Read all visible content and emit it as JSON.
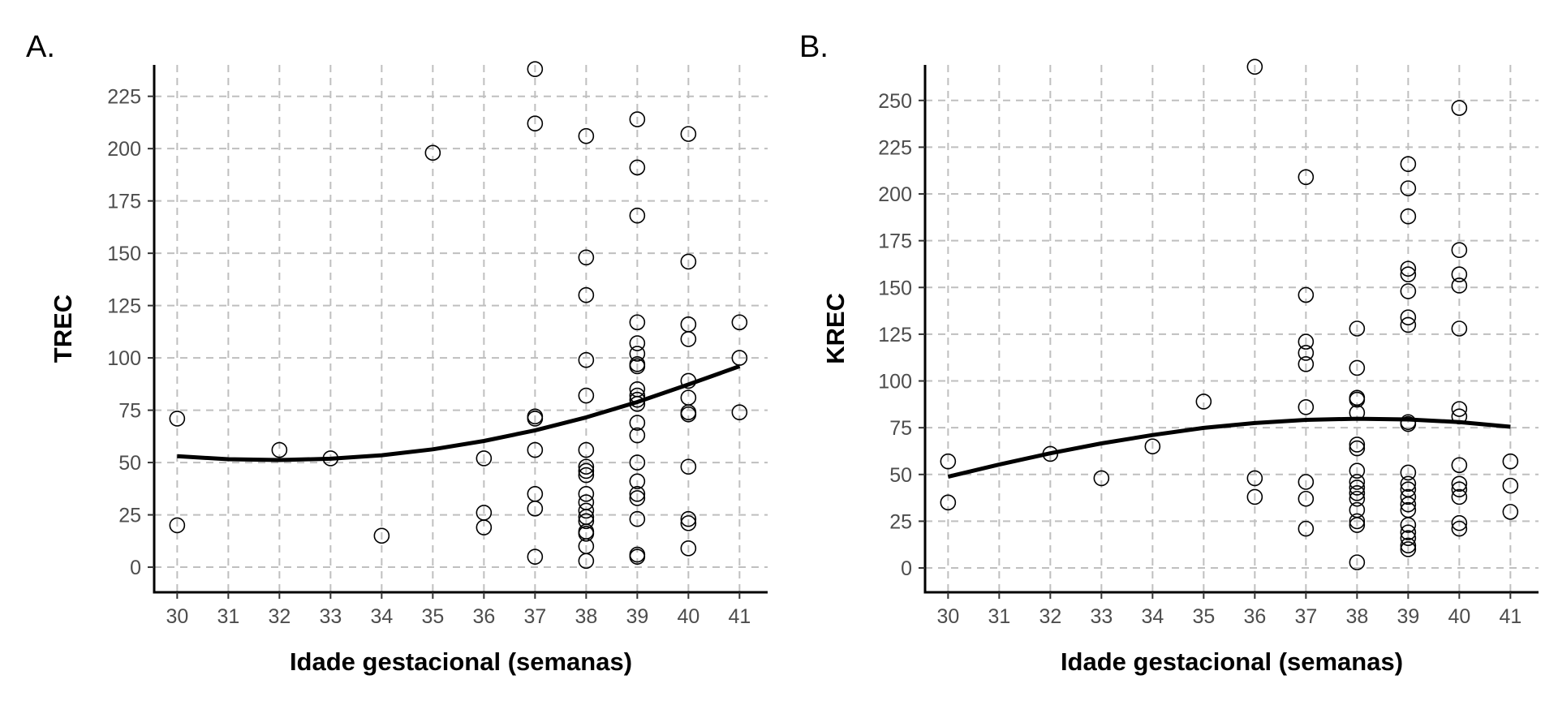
{
  "chart_data": [
    {
      "type": "scatter",
      "panel": "A.",
      "xlabel": "Idade gestacional (semanas)",
      "ylabel": "TREC",
      "xlim": [
        29.55,
        41.55
      ],
      "ylim": [
        -12,
        240
      ],
      "xticks": [
        30,
        31,
        32,
        33,
        34,
        35,
        36,
        37,
        38,
        39,
        40,
        41
      ],
      "yticks": [
        0,
        25,
        50,
        75,
        100,
        125,
        150,
        175,
        200,
        225
      ],
      "grid": true,
      "points": [
        [
          30,
          71
        ],
        [
          30,
          20
        ],
        [
          32,
          56
        ],
        [
          33,
          52
        ],
        [
          34,
          15
        ],
        [
          35,
          198
        ],
        [
          36,
          52
        ],
        [
          36,
          26
        ],
        [
          36,
          19
        ],
        [
          37,
          238
        ],
        [
          37,
          212
        ],
        [
          37,
          72
        ],
        [
          37,
          71
        ],
        [
          37,
          56
        ],
        [
          37,
          35
        ],
        [
          37,
          28
        ],
        [
          37,
          5
        ],
        [
          38,
          206
        ],
        [
          38,
          148
        ],
        [
          38,
          130
        ],
        [
          38,
          99
        ],
        [
          38,
          82
        ],
        [
          38,
          56
        ],
        [
          38,
          48
        ],
        [
          38,
          46
        ],
        [
          38,
          44
        ],
        [
          38,
          35
        ],
        [
          38,
          31
        ],
        [
          38,
          27
        ],
        [
          38,
          24
        ],
        [
          38,
          22
        ],
        [
          38,
          17
        ],
        [
          38,
          16
        ],
        [
          38,
          10
        ],
        [
          38,
          3
        ],
        [
          39,
          214
        ],
        [
          39,
          191
        ],
        [
          39,
          168
        ],
        [
          39,
          117
        ],
        [
          39,
          107
        ],
        [
          39,
          102
        ],
        [
          39,
          97
        ],
        [
          39,
          96
        ],
        [
          39,
          85
        ],
        [
          39,
          82
        ],
        [
          39,
          80
        ],
        [
          39,
          78
        ],
        [
          39,
          69
        ],
        [
          39,
          63
        ],
        [
          39,
          50
        ],
        [
          39,
          41
        ],
        [
          39,
          35
        ],
        [
          39,
          33
        ],
        [
          39,
          23
        ],
        [
          39,
          6
        ],
        [
          39,
          5
        ],
        [
          40,
          207
        ],
        [
          40,
          146
        ],
        [
          40,
          116
        ],
        [
          40,
          109
        ],
        [
          40,
          89
        ],
        [
          40,
          81
        ],
        [
          40,
          74
        ],
        [
          40,
          73
        ],
        [
          40,
          48
        ],
        [
          40,
          23
        ],
        [
          40,
          21
        ],
        [
          40,
          9
        ],
        [
          41,
          117
        ],
        [
          41,
          100
        ],
        [
          41,
          74
        ]
      ],
      "fit_curve": {
        "x": [
          30,
          31,
          32,
          33,
          34,
          35,
          36,
          37,
          38,
          39,
          40,
          41
        ],
        "y": [
          53.0,
          51.6,
          51.2,
          51.8,
          53.5,
          56.3,
          60.3,
          65.4,
          71.6,
          78.9,
          87.3,
          96.0
        ]
      }
    },
    {
      "type": "scatter",
      "panel": "B.",
      "xlabel": "Idade gestacional (semanas)",
      "ylabel": "KREC",
      "xlim": [
        29.55,
        41.55
      ],
      "ylim": [
        -13,
        269
      ],
      "xticks": [
        30,
        31,
        32,
        33,
        34,
        35,
        36,
        37,
        38,
        39,
        40,
        41
      ],
      "yticks": [
        0,
        25,
        50,
        75,
        100,
        125,
        150,
        175,
        200,
        225,
        250
      ],
      "grid": true,
      "points": [
        [
          30,
          57
        ],
        [
          30,
          35
        ],
        [
          32,
          61
        ],
        [
          33,
          48
        ],
        [
          34,
          65
        ],
        [
          35,
          89
        ],
        [
          36,
          268
        ],
        [
          36,
          48
        ],
        [
          36,
          38
        ],
        [
          37,
          209
        ],
        [
          37,
          146
        ],
        [
          37,
          121
        ],
        [
          37,
          115
        ],
        [
          37,
          109
        ],
        [
          37,
          86
        ],
        [
          37,
          46
        ],
        [
          37,
          37
        ],
        [
          37,
          21
        ],
        [
          38,
          128
        ],
        [
          38,
          107
        ],
        [
          38,
          91
        ],
        [
          38,
          90
        ],
        [
          38,
          83
        ],
        [
          38,
          66
        ],
        [
          38,
          64
        ],
        [
          38,
          52
        ],
        [
          38,
          46
        ],
        [
          38,
          43
        ],
        [
          38,
          40
        ],
        [
          38,
          37
        ],
        [
          38,
          31
        ],
        [
          38,
          25
        ],
        [
          38,
          23
        ],
        [
          38,
          3
        ],
        [
          39,
          216
        ],
        [
          39,
          203
        ],
        [
          39,
          188
        ],
        [
          39,
          160
        ],
        [
          39,
          157
        ],
        [
          39,
          148
        ],
        [
          39,
          134
        ],
        [
          39,
          130
        ],
        [
          39,
          78
        ],
        [
          39,
          77
        ],
        [
          39,
          51
        ],
        [
          39,
          45
        ],
        [
          39,
          42
        ],
        [
          39,
          38
        ],
        [
          39,
          34
        ],
        [
          39,
          31
        ],
        [
          39,
          23
        ],
        [
          39,
          19
        ],
        [
          39,
          16
        ],
        [
          39,
          12
        ],
        [
          39,
          10
        ],
        [
          40,
          246
        ],
        [
          40,
          170
        ],
        [
          40,
          157
        ],
        [
          40,
          151
        ],
        [
          40,
          128
        ],
        [
          40,
          85
        ],
        [
          40,
          81
        ],
        [
          40,
          55
        ],
        [
          40,
          45
        ],
        [
          40,
          42
        ],
        [
          40,
          38
        ],
        [
          40,
          24
        ],
        [
          40,
          21
        ],
        [
          41,
          57
        ],
        [
          41,
          44
        ],
        [
          41,
          30
        ]
      ],
      "fit_curve": {
        "x": [
          30,
          31,
          32,
          33,
          34,
          35,
          36,
          37,
          38,
          39,
          40,
          41
        ],
        "y": [
          48.8,
          55.3,
          61.3,
          66.6,
          71.1,
          74.9,
          77.5,
          79.2,
          79.8,
          79.4,
          78.0,
          75.5
        ]
      }
    }
  ]
}
